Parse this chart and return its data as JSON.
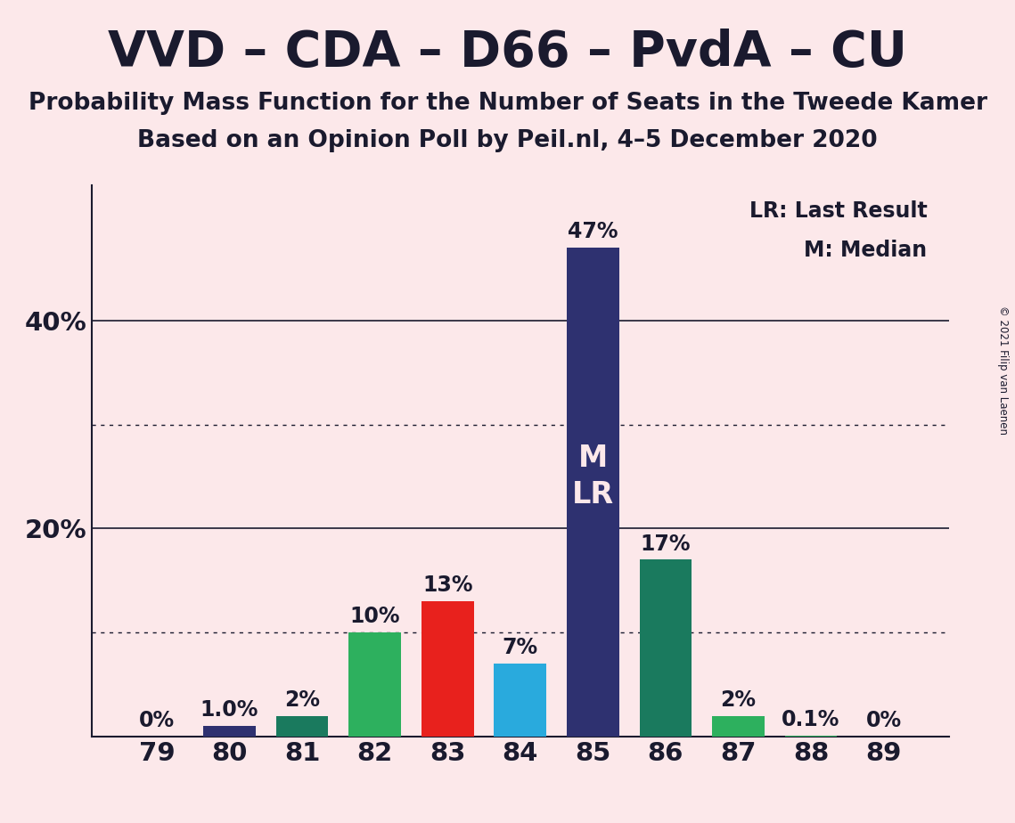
{
  "title": "VVD – CDA – D66 – PvdA – CU",
  "subtitle1": "Probability Mass Function for the Number of Seats in the Tweede Kamer",
  "subtitle2": "Based on an Opinion Poll by Peil.nl, 4–5 December 2020",
  "copyright": "© 2021 Filip van Laenen",
  "categories": [
    79,
    80,
    81,
    82,
    83,
    84,
    85,
    86,
    87,
    88,
    89
  ],
  "values": [
    0.0,
    1.0,
    2.0,
    10.0,
    13.0,
    7.0,
    47.0,
    17.0,
    2.0,
    0.1,
    0.0
  ],
  "bar_colors": [
    "#2e3170",
    "#2e3170",
    "#1a7a5e",
    "#2db05e",
    "#e8211d",
    "#29aadd",
    "#2e3170",
    "#1a7a5e",
    "#2db05e",
    "#2db05e",
    "#2e3170"
  ],
  "labels": [
    "0%",
    "1.0%",
    "2%",
    "10%",
    "13%",
    "7%",
    "47%",
    "17%",
    "2%",
    "0.1%",
    "0%"
  ],
  "background_color": "#fce8ea",
  "text_color": "#1a1a2e",
  "ylim": [
    0,
    53
  ],
  "solid_lines": [
    20,
    40
  ],
  "dotted_lines": [
    10,
    30
  ],
  "title_fontsize": 40,
  "subtitle_fontsize": 19,
  "label_fontsize": 17,
  "tick_fontsize": 21,
  "bar_width": 0.72,
  "xlim_left": 78.1,
  "xlim_right": 89.9
}
